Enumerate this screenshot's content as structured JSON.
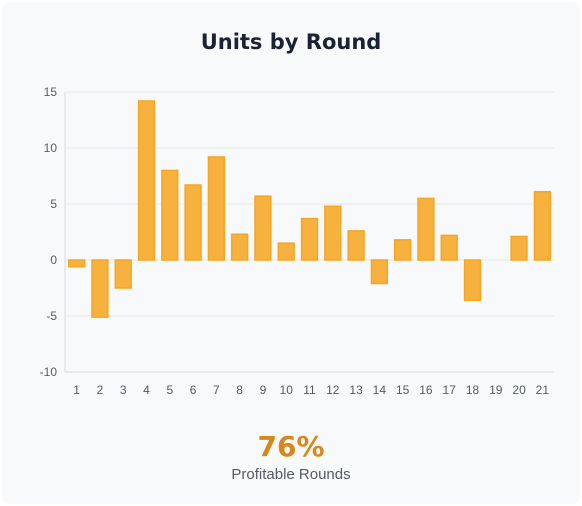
{
  "chart_data": {
    "type": "bar",
    "title": "Units by Round",
    "categories": [
      "1",
      "2",
      "3",
      "4",
      "5",
      "6",
      "7",
      "8",
      "9",
      "10",
      "11",
      "12",
      "13",
      "14",
      "15",
      "16",
      "17",
      "18",
      "19",
      "20",
      "21"
    ],
    "values": [
      -0.6,
      -5.1,
      -2.5,
      14.2,
      8.0,
      6.7,
      9.2,
      2.3,
      5.7,
      1.5,
      3.7,
      4.8,
      2.6,
      -2.1,
      1.8,
      5.5,
      2.2,
      -3.6,
      0,
      2.1,
      6.1
    ],
    "ylim": [
      -10,
      15
    ],
    "yticks": [
      "-10",
      "-5",
      "0",
      "5",
      "10",
      "15"
    ],
    "xlabel": "",
    "ylabel": "",
    "grid": true,
    "legend": "none",
    "bar_color": "#f7b13f",
    "bar_border_color": "#f5a623"
  },
  "stat": {
    "value": "76%",
    "label": "Profitable Rounds",
    "color": "#d9861a"
  }
}
